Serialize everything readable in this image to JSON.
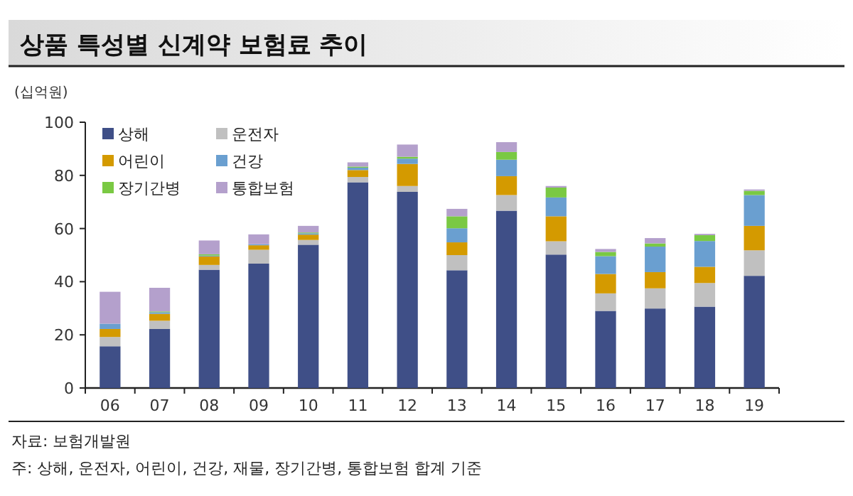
{
  "chart_data": {
    "type": "bar",
    "title": "상품 특성별 신계약 보험료 추이",
    "ylabel": "(십억원)",
    "categories": [
      "06",
      "07",
      "08",
      "09",
      "10",
      "11",
      "12",
      "13",
      "14",
      "15",
      "16",
      "17",
      "18",
      "19"
    ],
    "stacked": true,
    "ylim": [
      0,
      100
    ],
    "yticks": [
      0,
      20,
      40,
      60,
      80,
      100
    ],
    "legend": "top left",
    "series": [
      {
        "name": "상해",
        "color": "#3f4f87",
        "values": [
          15.7,
          22.2,
          44.5,
          46.8,
          53.9,
          77.4,
          73.8,
          44.3,
          66.7,
          50.2,
          29,
          29.9,
          30.6,
          42.2
        ]
      },
      {
        "name": "운전자",
        "color": "#c0c0c0",
        "values": [
          3.5,
          3.1,
          1.8,
          5.2,
          1.8,
          2,
          2.2,
          5.7,
          5.9,
          5,
          6.6,
          7.6,
          8.9,
          9.6
        ]
      },
      {
        "name": "어린이",
        "color": "#d49a00",
        "values": [
          3,
          2.6,
          3.2,
          1.7,
          2,
          2.6,
          8.3,
          4.8,
          7.1,
          9.4,
          7.3,
          6.1,
          6.1,
          9.2
        ]
      },
      {
        "name": "건강",
        "color": "#6a9fd0",
        "values": [
          2,
          0.6,
          0.3,
          0.4,
          0.5,
          0.9,
          2,
          5.3,
          6.2,
          7.1,
          6.7,
          9.6,
          9.7,
          11.6
        ]
      },
      {
        "name": "장기간병",
        "color": "#7ac943",
        "values": [
          0,
          0.3,
          0.5,
          0,
          0.3,
          0.4,
          0.7,
          4.5,
          2.9,
          3.7,
          1.6,
          1.2,
          2.2,
          1.6
        ]
      },
      {
        "name": "통합보험",
        "color": "#b4a0cc",
        "values": [
          12,
          8.9,
          5.2,
          3.7,
          2.5,
          1.6,
          4.6,
          2.8,
          3.7,
          0.6,
          1.1,
          2,
          0.5,
          0.5
        ]
      }
    ],
    "annotations": [
      "자료: 보험개발원",
      "주: 상해, 운전자, 어린이, 건강, 재물, 장기간병, 통합보험 합계 기준"
    ]
  }
}
